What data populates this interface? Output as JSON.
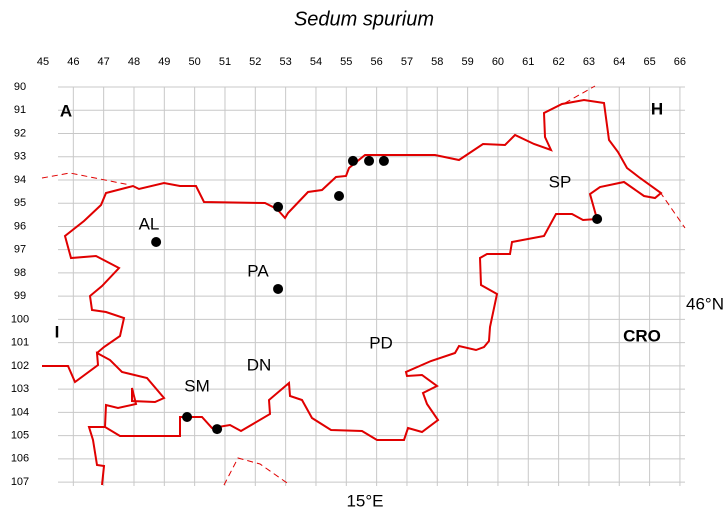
{
  "map": {
    "title": "Sedum spurium",
    "columns": [
      45,
      46,
      47,
      48,
      49,
      50,
      51,
      52,
      53,
      54,
      55,
      56,
      57,
      58,
      59,
      60,
      61,
      62,
      63,
      64,
      65,
      66
    ],
    "rows": [
      90,
      91,
      92,
      93,
      94,
      95,
      96,
      97,
      98,
      99,
      100,
      101,
      102,
      103,
      104,
      105,
      106,
      107
    ],
    "countries": [
      "A",
      "H",
      "I",
      "CRO"
    ],
    "regions": [
      "SP",
      "AL",
      "PA",
      "DN",
      "PD",
      "SM"
    ],
    "latitude_label": "46°N",
    "longitude_label": "15°E",
    "records": [
      {
        "x": 55.22,
        "y": 93.18
      },
      {
        "x": 55.75,
        "y": 93.18
      },
      {
        "x": 56.24,
        "y": 93.18
      },
      {
        "x": 54.76,
        "y": 94.69
      },
      {
        "x": 52.75,
        "y": 95.16
      },
      {
        "x": 63.27,
        "y": 95.68
      },
      {
        "x": 48.73,
        "y": 96.67
      },
      {
        "x": 52.75,
        "y": 98.69
      },
      {
        "x": 49.75,
        "y": 104.2
      },
      {
        "x": 50.74,
        "y": 104.72
      }
    ]
  }
}
